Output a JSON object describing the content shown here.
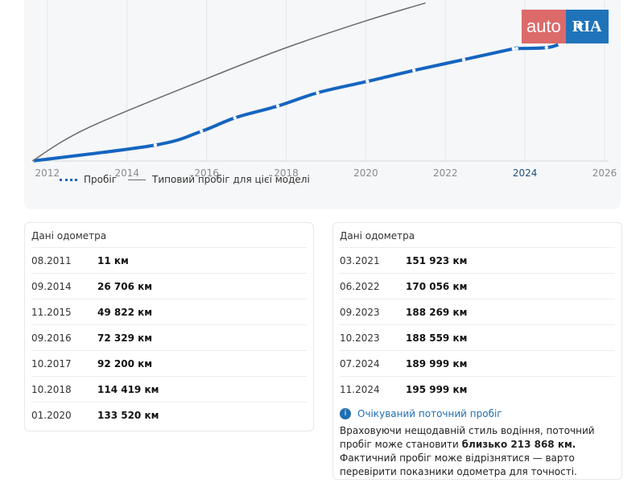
{
  "logo": {
    "part1": "auto",
    "part2": "RIA"
  },
  "chart_data": {
    "type": "line",
    "xlim": [
      2011.7,
      2026.1
    ],
    "ylim": [
      0,
      270000
    ],
    "x_ticks": [
      "2012",
      "2014",
      "2016",
      "2018",
      "2020",
      "2022",
      "2024",
      "2026"
    ],
    "highlight_tick": "2024",
    "series": [
      {
        "name": "Пробіг",
        "x": [
          "2011.62",
          "2014.71",
          "2015.87",
          "2016.71",
          "2017.79",
          "2018.79",
          "2020.04",
          "2021.21",
          "2022.46",
          "2023.71",
          "2023.79",
          "2024.54",
          "2024.87"
        ],
        "y": [
          11,
          26706,
          49822,
          72329,
          92200,
          114419,
          133520,
          151923,
          170056,
          188269,
          188559,
          189999,
          195999
        ],
        "color": "#1565c0",
        "style": "dotted"
      },
      {
        "name": "Типовий пробіг для цієї моделі",
        "x": [
          2011.62,
          2013.0,
          2016.0,
          2018.0,
          2020.0,
          2021.5
        ],
        "y": [
          0,
          55000,
          138000,
          190000,
          235000,
          265000
        ],
        "color": "#6b6b6b",
        "style": "solid"
      }
    ]
  },
  "legend": {
    "mileage": "Пробіг",
    "typical": "Типовий пробіг для цієї моделі"
  },
  "odometer_left": {
    "title": "Дані одометра",
    "rows": [
      {
        "date": "08.2011",
        "km": "11 км"
      },
      {
        "date": "09.2014",
        "km": "26 706 км"
      },
      {
        "date": "11.2015",
        "km": "49 822 км"
      },
      {
        "date": "09.2016",
        "km": "72 329 км"
      },
      {
        "date": "10.2017",
        "km": "92 200 км"
      },
      {
        "date": "10.2018",
        "km": "114 419 км"
      },
      {
        "date": "01.2020",
        "km": "133 520 км"
      }
    ]
  },
  "odometer_right": {
    "title": "Дані одометра",
    "rows": [
      {
        "date": "03.2021",
        "km": "151 923 км"
      },
      {
        "date": "06.2022",
        "km": "170 056 км"
      },
      {
        "date": "09.2023",
        "km": "188 269 км"
      },
      {
        "date": "10.2023",
        "km": "188 559 км"
      },
      {
        "date": "07.2024",
        "km": "189 999 км"
      },
      {
        "date": "11.2024",
        "km": "195 999 км"
      }
    ]
  },
  "expected": {
    "title": "Очікуваний поточний пробіг",
    "text_before": "Враховуючи нещодавній стиль водіння, поточний пробіг може становити ",
    "bold": "близько 213 868 км.",
    "text_after": " Фактичний пробіг може відрізнятися — варто перевірити показники одометра для точності.",
    "info_glyph": "i"
  }
}
